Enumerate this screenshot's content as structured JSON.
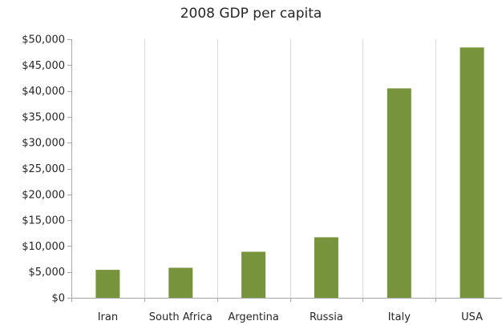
{
  "chart_data": {
    "type": "bar",
    "title": "2008 GDP per capita",
    "xlabel": "",
    "ylabel": "",
    "categories": [
      "Iran",
      "South Africa",
      "Argentina",
      "Russia",
      "Italy",
      "USA"
    ],
    "values": [
      5400,
      5800,
      8900,
      11700,
      40500,
      48400
    ],
    "ylim": [
      0,
      50000
    ],
    "y_ticks": [
      0,
      5000,
      10000,
      15000,
      20000,
      25000,
      30000,
      35000,
      40000,
      45000,
      50000
    ],
    "y_tick_labels": [
      "$0",
      "$5,000",
      "$10,000",
      "$15,000",
      "$20,000",
      "$25,000",
      "$30,000",
      "$35,000",
      "$40,000",
      "$45,000",
      "$50,000"
    ],
    "grid": {
      "horizontal": false,
      "vertical": true
    },
    "legend": "none",
    "colors": {
      "bar": "#77933c",
      "gridline": "#d9d9d9",
      "axis": "#a6a6a6",
      "text": "#262626"
    }
  }
}
